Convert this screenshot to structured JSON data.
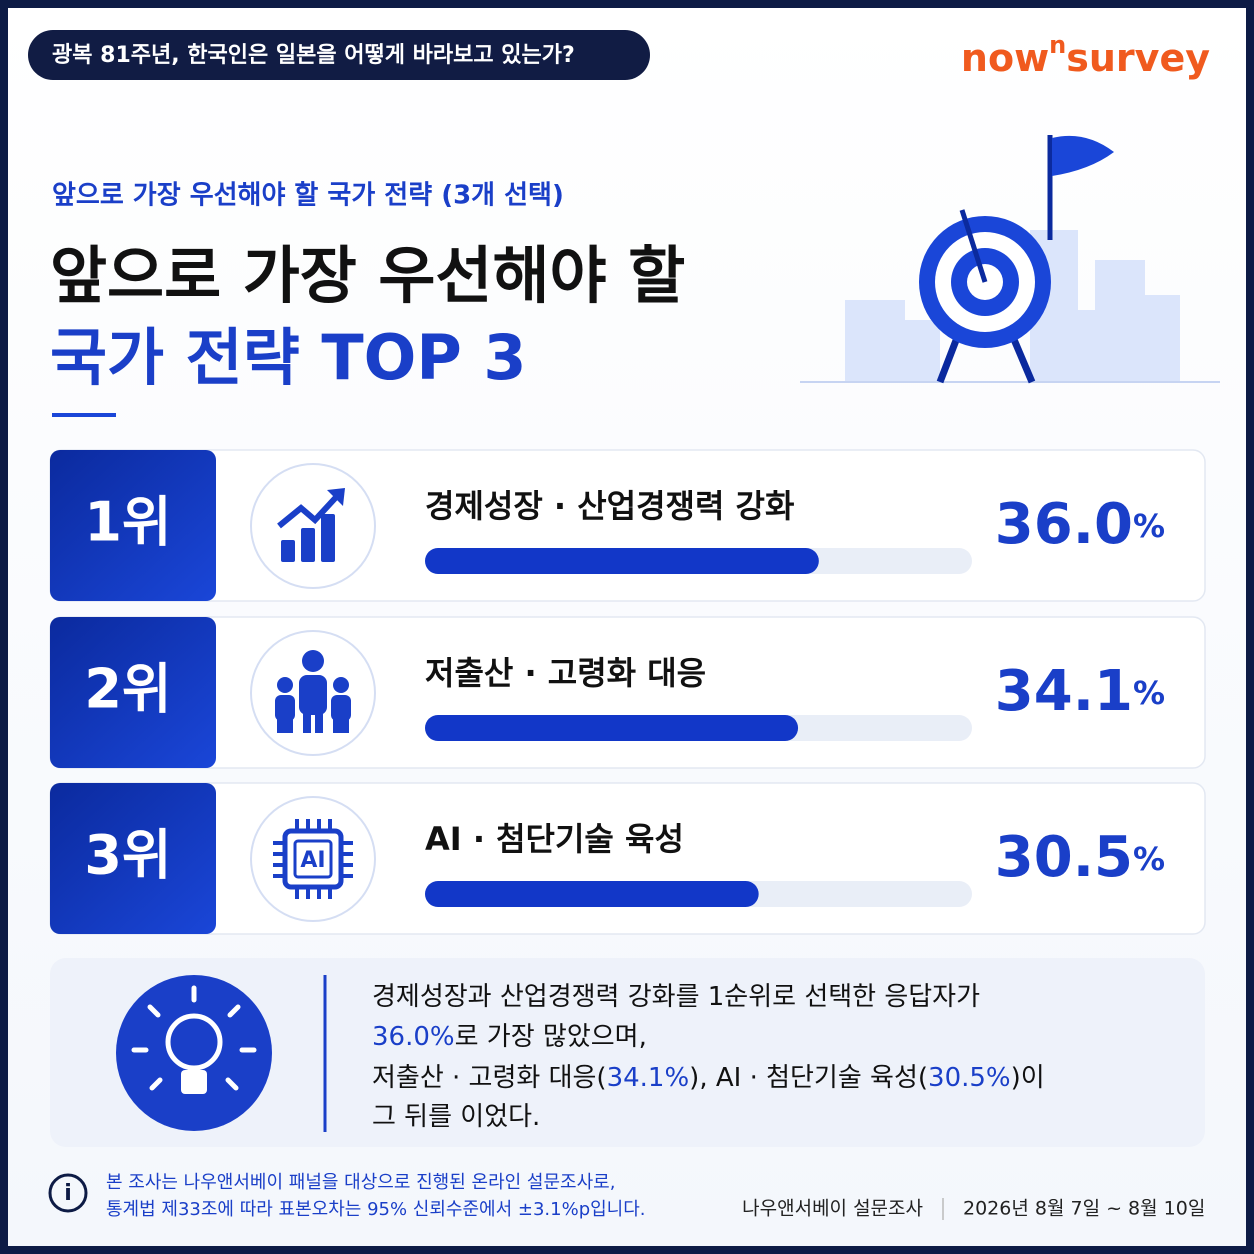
{
  "header": {
    "badge": "광복 81주년, 한국인은 일본을 어떻게 바라보고 있는가?",
    "logo": [
      "now",
      "n",
      "survey"
    ]
  },
  "subtitle": "앞으로 가장 우선해야 할 국가 전략 (3개 선택)",
  "title": [
    "앞으로 가장 우선해야 할",
    "국가 전략 TOP 3"
  ],
  "ranking": {
    "xlim": [
      0,
      50
    ],
    "items": [
      {
        "rank": "1위",
        "label": "경제성장 · 산업경쟁력 강화",
        "value": 36.0,
        "value_label": "36.0",
        "unit": "%"
      },
      {
        "rank": "2위",
        "label": "저출산 · 고령화 대응",
        "value": 34.1,
        "value_label": "34.1",
        "unit": "%"
      },
      {
        "rank": "3위",
        "label": "AI · 첨단기술 육성",
        "value": 30.5,
        "value_label": "30.5",
        "unit": "%"
      }
    ]
  },
  "summary": [
    [
      {
        "text": "경제성장과 산업경쟁력 강화를 1순위로 선택한 응답자가",
        "accent": false
      }
    ],
    [
      {
        "text": "36.0%",
        "accent": true
      },
      {
        "text": "로 가장 많았으며,",
        "accent": false
      }
    ],
    [
      {
        "text": "저출산 · 고령화 대응(",
        "accent": false
      },
      {
        "text": "34.1%",
        "accent": true
      },
      {
        "text": "), AI · 첨단기술 육성(",
        "accent": false
      },
      {
        "text": "30.5%",
        "accent": true
      },
      {
        "text": ")이",
        "accent": false
      }
    ],
    [
      {
        "text": "그 뒤를 이었다.",
        "accent": false
      }
    ]
  ],
  "footer": {
    "icon": "i",
    "note": [
      "본 조사는 나우앤서베이 패널을 대상으로 진행된 온라인 설문조사로,",
      "통계법 제33조에 따라 표본오차는 95% 신뢰수준에서 ±3.1%p입니다."
    ],
    "source": "나우앤서베이 설문조사",
    "date": "2026년 8월 7일 ~ 8월 10일"
  }
}
